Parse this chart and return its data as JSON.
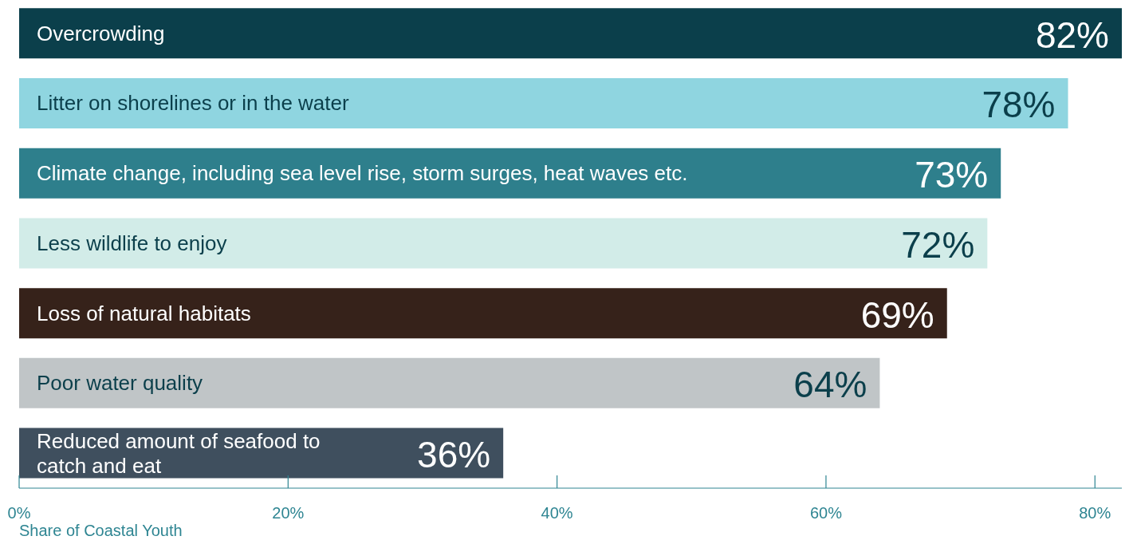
{
  "chart_data": {
    "type": "bar",
    "orientation": "horizontal",
    "categories": [
      "Overcrowding",
      "Litter on shorelines or in the water",
      "Climate change, including sea level rise, storm surges, heat waves etc.",
      "Less wildlife to enjoy",
      "Loss of natural habitats",
      "Poor water quality",
      "Reduced amount of seafood to catch and eat"
    ],
    "values": [
      82,
      78,
      73,
      72,
      69,
      64,
      36
    ],
    "value_labels": [
      "82%",
      "78%",
      "73%",
      "72%",
      "69%",
      "64%",
      "36%"
    ],
    "colors": [
      "#0b3f4b",
      "#8fd5e0",
      "#2e7f8c",
      "#d2ece8",
      "#36221a",
      "#c0c5c7",
      "#3f4f5e"
    ],
    "xlim": [
      0,
      82
    ],
    "xticks": [
      {
        "value": 0,
        "label": "0%"
      },
      {
        "value": 20,
        "label": "20%"
      },
      {
        "value": 40,
        "label": "40%"
      },
      {
        "value": 60,
        "label": "60%"
      },
      {
        "value": 80,
        "label": "80%"
      }
    ],
    "xlabel": "Share of Coastal Youth",
    "grid": false,
    "legend": false
  }
}
